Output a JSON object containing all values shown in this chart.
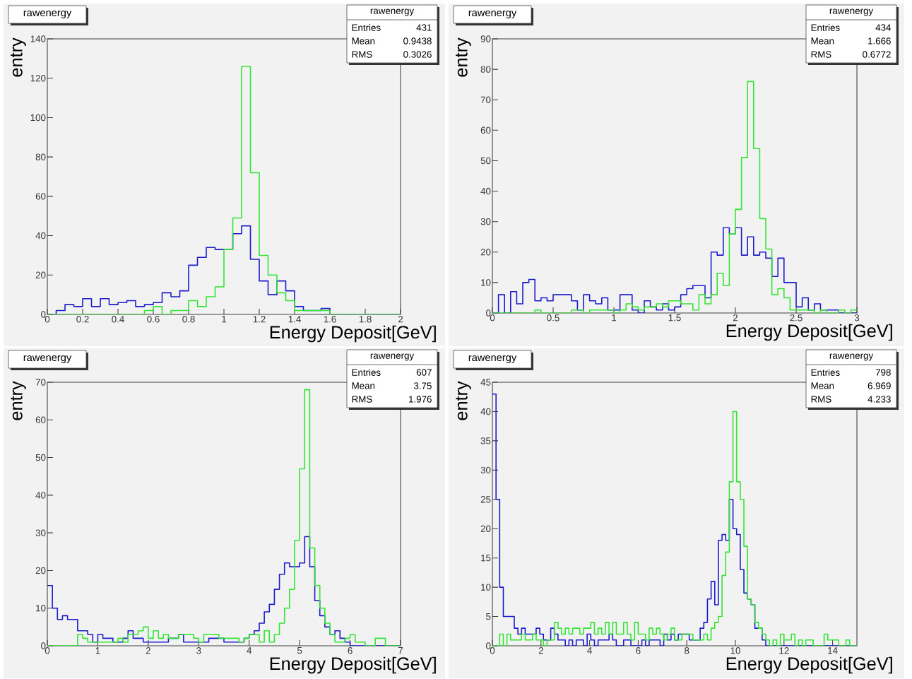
{
  "chart_data": [
    {
      "type": "histogram",
      "title": "rawenergy",
      "xlabel": "Energy Deposit[GeV]",
      "ylabel": "entry",
      "annotations": [
        "rawenergy",
        "Entries",
        "431",
        "Mean",
        "0.9438",
        "RMS",
        "0.3026"
      ],
      "bins": [
        0,
        0.05,
        0.1,
        0.15,
        0.2,
        0.25,
        0.3,
        0.35,
        0.4,
        0.45,
        0.5,
        0.55,
        0.6,
        0.65,
        0.7,
        0.75,
        0.8,
        0.85,
        0.9,
        0.95,
        1,
        1.05,
        1.1,
        1.15,
        1.2,
        1.25,
        1.3,
        1.35,
        1.4,
        1.45,
        1.5,
        1.55,
        1.6,
        1.65,
        1.7,
        1.75,
        1.8,
        1.85,
        1.9,
        1.95,
        2
      ],
      "series": [
        {
          "color": "#1c1ccc",
          "values": [
            0,
            2,
            5,
            4,
            8,
            4,
            8,
            5,
            6,
            7,
            4,
            5,
            6,
            11,
            9,
            12,
            25,
            29,
            34,
            33,
            33,
            41,
            45,
            28,
            17,
            10,
            17,
            12,
            4,
            2,
            2,
            3,
            0,
            0,
            0,
            0,
            0,
            0,
            0,
            0
          ]
        },
        {
          "color": "#33e633",
          "values": [
            0,
            0,
            0,
            0,
            0,
            0,
            0,
            0,
            0,
            0,
            0,
            2,
            4,
            0,
            2,
            2,
            7,
            4,
            9,
            14,
            33,
            49,
            126,
            72,
            30,
            20,
            11,
            7,
            2,
            2,
            2,
            2,
            0,
            0,
            0,
            0,
            0,
            0,
            0,
            0
          ]
        }
      ],
      "xlim": [
        0,
        2
      ],
      "ylim": [
        0,
        140
      ],
      "xticks": [
        0,
        0.2,
        0.4,
        0.6,
        0.8,
        1,
        1.2,
        1.4,
        1.6,
        1.8,
        2
      ],
      "yticks": [
        0,
        20,
        40,
        60,
        80,
        100,
        120,
        140
      ]
    },
    {
      "type": "histogram",
      "title": "rawenergy",
      "xlabel": "Energy Deposit[GeV]",
      "ylabel": "entry",
      "annotations": [
        "rawenergy",
        "Entries",
        "434",
        "Mean",
        "1.666",
        "RMS",
        "0.6772"
      ],
      "bins": [
        0,
        0.05,
        0.1,
        0.15,
        0.2,
        0.25,
        0.3,
        0.35,
        0.4,
        0.45,
        0.5,
        0.55,
        0.6,
        0.65,
        0.7,
        0.75,
        0.8,
        0.85,
        0.9,
        0.95,
        1,
        1.05,
        1.1,
        1.15,
        1.2,
        1.25,
        1.3,
        1.35,
        1.4,
        1.45,
        1.5,
        1.55,
        1.6,
        1.65,
        1.7,
        1.75,
        1.8,
        1.85,
        1.9,
        1.95,
        2,
        2.05,
        2.1,
        2.15,
        2.2,
        2.25,
        2.3,
        2.35,
        2.4,
        2.45,
        2.5,
        2.55,
        2.6,
        2.65,
        2.7,
        2.75,
        2.8,
        2.85,
        2.9,
        2.95,
        3
      ],
      "series": [
        {
          "color": "#1c1ccc",
          "values": [
            0,
            6,
            0,
            7,
            3,
            10,
            11,
            4,
            5,
            4,
            6,
            6,
            6,
            4,
            1,
            6,
            4,
            3,
            5,
            1,
            1,
            6,
            6,
            1,
            0,
            4,
            2,
            1,
            3,
            1,
            2,
            6,
            8,
            9,
            9,
            5,
            20,
            19,
            28,
            26,
            28,
            19,
            25,
            19,
            20,
            18,
            12,
            18,
            10,
            10,
            2,
            5,
            1,
            3,
            1,
            1,
            1,
            0,
            0,
            0
          ]
        },
        {
          "color": "#33e633",
          "values": [
            0,
            0,
            0,
            0,
            0,
            0,
            0,
            1,
            0,
            0,
            0,
            0,
            0,
            1,
            1,
            0,
            1,
            1,
            1,
            1,
            0,
            1,
            3,
            2,
            1,
            2,
            2,
            3,
            2,
            4,
            4,
            3,
            3,
            1,
            6,
            3,
            6,
            13,
            9,
            26,
            34,
            51,
            76,
            54,
            31,
            21,
            6,
            8,
            5,
            1,
            1,
            1,
            1,
            0,
            1,
            0,
            0,
            1,
            0,
            1
          ]
        }
      ],
      "xlim": [
        0,
        3
      ],
      "ylim": [
        0,
        90
      ],
      "xticks": [
        0,
        0.5,
        1,
        1.5,
        2,
        2.5,
        3
      ],
      "yticks": [
        0,
        10,
        20,
        30,
        40,
        50,
        60,
        70,
        80,
        90
      ]
    },
    {
      "type": "histogram",
      "title": "rawenergy",
      "xlabel": "Energy Deposit[GeV]",
      "ylabel": "entry",
      "annotations": [
        "rawenergy",
        "Entries",
        "607",
        "Mean",
        "3.75",
        "RMS",
        "1.976"
      ],
      "bins": [
        0,
        0.1,
        0.2,
        0.3,
        0.4,
        0.5,
        0.6,
        0.7,
        0.8,
        0.9,
        1,
        1.1,
        1.2,
        1.3,
        1.4,
        1.5,
        1.6,
        1.7,
        1.8,
        1.9,
        2,
        2.1,
        2.2,
        2.3,
        2.4,
        2.5,
        2.6,
        2.7,
        2.8,
        2.9,
        3,
        3.1,
        3.2,
        3.3,
        3.4,
        3.5,
        3.6,
        3.7,
        3.8,
        3.9,
        4,
        4.1,
        4.2,
        4.3,
        4.4,
        4.5,
        4.6,
        4.7,
        4.8,
        4.9,
        5,
        5.1,
        5.2,
        5.3,
        5.4,
        5.5,
        5.6,
        5.7,
        5.8,
        5.9,
        6,
        6.1,
        6.2,
        6.3,
        6.4,
        6.5,
        6.6,
        6.7,
        6.8,
        6.9,
        7
      ],
      "series": [
        {
          "color": "#1c1ccc",
          "values": [
            16,
            10,
            7,
            8,
            7,
            7,
            4,
            4,
            3,
            1,
            3,
            2,
            2,
            1,
            1,
            2,
            4,
            2,
            2,
            1,
            1,
            1,
            1,
            1,
            2,
            2,
            3,
            1,
            1,
            1,
            1,
            1,
            2,
            2,
            2,
            1,
            1,
            1,
            1,
            2,
            3,
            4,
            6,
            9,
            11,
            15,
            19,
            22,
            21,
            21,
            22,
            29,
            21,
            12,
            8,
            5,
            3,
            4,
            2,
            1,
            0,
            0,
            0,
            0,
            0,
            0,
            0,
            0,
            0,
            0
          ]
        },
        {
          "color": "#33e633",
          "values": [
            0,
            0,
            0,
            0,
            0,
            0,
            3,
            2,
            1,
            1,
            1,
            1,
            1,
            1,
            2,
            1,
            3,
            3,
            4,
            5,
            2,
            4,
            2,
            3,
            2,
            2,
            3,
            3,
            3,
            2,
            1,
            3,
            3,
            3,
            2,
            2,
            2,
            2,
            1,
            2,
            3,
            3,
            1,
            4,
            1,
            3,
            6,
            10,
            15,
            28,
            47,
            68,
            26,
            16,
            10,
            6,
            3,
            1,
            1,
            2,
            3,
            1,
            1,
            0,
            0,
            2,
            2,
            0,
            0,
            0
          ]
        }
      ],
      "xlim": [
        0,
        7
      ],
      "ylim": [
        0,
        70
      ],
      "xticks": [
        0,
        1,
        2,
        3,
        4,
        5,
        6,
        7
      ],
      "yticks": [
        0,
        10,
        20,
        30,
        40,
        50,
        60,
        70
      ]
    },
    {
      "type": "histogram",
      "title": "rawenergy",
      "xlabel": "Energy Deposit[GeV]",
      "ylabel": "entry",
      "annotations": [
        "rawenergy",
        "Entries",
        "798",
        "Mean",
        "6.969",
        "RMS",
        "4.233"
      ],
      "bins": [
        0,
        0.15,
        0.3,
        0.45,
        0.6,
        0.75,
        0.9,
        1.05,
        1.2,
        1.35,
        1.5,
        1.65,
        1.8,
        1.95,
        2.1,
        2.25,
        2.4,
        2.55,
        2.7,
        2.85,
        3,
        3.15,
        3.3,
        3.45,
        3.6,
        3.75,
        3.9,
        4.05,
        4.2,
        4.35,
        4.5,
        4.65,
        4.8,
        4.95,
        5.1,
        5.25,
        5.4,
        5.55,
        5.7,
        5.85,
        6,
        6.15,
        6.3,
        6.45,
        6.6,
        6.75,
        6.9,
        7.05,
        7.2,
        7.35,
        7.5,
        7.65,
        7.8,
        7.95,
        8.1,
        8.25,
        8.4,
        8.55,
        8.7,
        8.85,
        9,
        9.15,
        9.3,
        9.45,
        9.6,
        9.75,
        9.9,
        10.05,
        10.2,
        10.35,
        10.5,
        10.65,
        10.8,
        10.95,
        11.1,
        11.25,
        11.4,
        11.55,
        11.7,
        11.85,
        12,
        12.15,
        12.3,
        12.45,
        12.6,
        12.75,
        12.9,
        13.05,
        13.2,
        13.35,
        13.5,
        13.65,
        13.8,
        13.95,
        14.1,
        14.25,
        14.4,
        14.55,
        14.7,
        14.85,
        15
      ],
      "series": [
        {
          "color": "#1c1ccc",
          "values": [
            43,
            25,
            10,
            5,
            5,
            5,
            3,
            2,
            3,
            2,
            2,
            2,
            3,
            2,
            1,
            1,
            3,
            2,
            1,
            1,
            0,
            1,
            0,
            1,
            1,
            0,
            2,
            1,
            0,
            1,
            1,
            1,
            2,
            1,
            0,
            0,
            1,
            1,
            0,
            0,
            0,
            1,
            0,
            1,
            1,
            1,
            0,
            2,
            1,
            2,
            1,
            2,
            2,
            2,
            1,
            1,
            1,
            3,
            4,
            8,
            11,
            7,
            18,
            19,
            18,
            25,
            20,
            19,
            13,
            9,
            8,
            7,
            3,
            3,
            1,
            0,
            0,
            0,
            0,
            0,
            0,
            0,
            0,
            0,
            0,
            0,
            0,
            0,
            0,
            0,
            0,
            0,
            0,
            0,
            0,
            0,
            0,
            0,
            0,
            0
          ]
        },
        {
          "color": "#33e633",
          "values": [
            0,
            0,
            2,
            0,
            2,
            1,
            1,
            1,
            2,
            1,
            1,
            2,
            1,
            1,
            0,
            1,
            1,
            4,
            3,
            2,
            3,
            2,
            3,
            3,
            2,
            3,
            3,
            4,
            2,
            3,
            2,
            4,
            2,
            4,
            2,
            2,
            4,
            2,
            1,
            4,
            2,
            2,
            1,
            3,
            2,
            3,
            2,
            1,
            2,
            3,
            1,
            1,
            2,
            2,
            2,
            1,
            1,
            1,
            2,
            1,
            3,
            4,
            5,
            12,
            16,
            28,
            40,
            28,
            25,
            17,
            8,
            7,
            4,
            3,
            2,
            1,
            0,
            1,
            0,
            2,
            1,
            1,
            2,
            0,
            1,
            0,
            1,
            1,
            0,
            0,
            0,
            2,
            1,
            1,
            1,
            0,
            0,
            1,
            0,
            0
          ]
        }
      ],
      "xlim": [
        0,
        15
      ],
      "ylim": [
        0,
        45
      ],
      "xticks": [
        0,
        2,
        4,
        6,
        8,
        10,
        12,
        14
      ],
      "yticks": [
        0,
        5,
        10,
        15,
        20,
        25,
        30,
        35,
        40,
        45
      ]
    }
  ]
}
